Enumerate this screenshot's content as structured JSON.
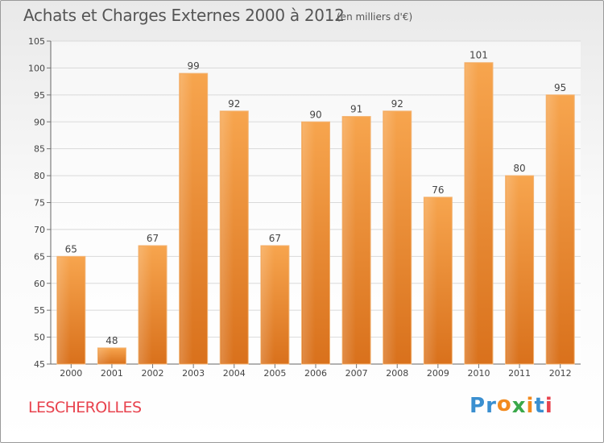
{
  "chart_data": {
    "type": "bar",
    "title": "Achats et Charges Externes 2000 à 2012",
    "subtitle": "(en milliers d'€)",
    "categories": [
      "2000",
      "2001",
      "2002",
      "2003",
      "2004",
      "2005",
      "2006",
      "2007",
      "2008",
      "2009",
      "2010",
      "2011",
      "2012"
    ],
    "values": [
      65,
      48,
      67,
      99,
      92,
      67,
      90,
      91,
      92,
      76,
      101,
      80,
      95
    ],
    "ylim": [
      45,
      105
    ],
    "yticks": [
      45,
      50,
      55,
      60,
      65,
      70,
      75,
      80,
      85,
      90,
      95,
      100,
      105
    ],
    "grid": true,
    "bar_color": "#f0923a",
    "xlabel": "",
    "ylabel": ""
  },
  "place_name": "LESCHEROLLES",
  "brand": {
    "letters": [
      "P",
      "r",
      "o",
      "x",
      "i",
      "t",
      "i"
    ],
    "colors": [
      "#3a8fd0",
      "#3a8fd0",
      "#f28a1e",
      "#3aa84a",
      "#f28a1e",
      "#3a8fd0",
      "#e8434e"
    ]
  }
}
